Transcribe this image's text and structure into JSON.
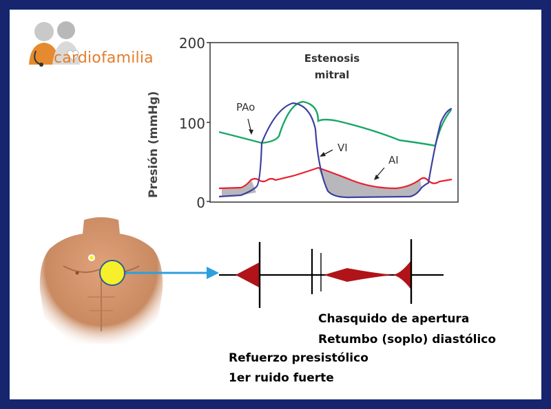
{
  "logo": {
    "text": "cardiofamilia"
  },
  "chart": {
    "title_line1": "Estenosis",
    "title_line2": "mitral",
    "ylabel": "Presión (mmHg)",
    "yticks": [
      "0",
      "100",
      "200"
    ]
  },
  "chart_data": {
    "type": "line",
    "ylabel": "Presión (mmHg)",
    "ylim": [
      0,
      200
    ],
    "series": [
      {
        "name": "PAo",
        "color": "#1aa764"
      },
      {
        "name": "VI",
        "color": "#3d3fa0"
      },
      {
        "name": "AI",
        "color": "#e8202e"
      }
    ]
  },
  "pcg": {
    "line1": "Chasquido de apertura",
    "line2": "Retumbo (soplo) diastólico",
    "line3": "Refuerzo presistólico",
    "line4": "1er ruido fuerte"
  },
  "colors": {
    "frame": "#16256e",
    "aortic": "#1aa764",
    "ventricle": "#3d3fa0",
    "atrium": "#e8202e",
    "murmur": "#b01318",
    "arrow": "#2d9fdb",
    "stethoscope": "#f7ef2a",
    "logo_text": "#e37d2b"
  },
  "icons": [
    "doctor-logo-icon",
    "stethoscope-point-icon",
    "torso-image"
  ]
}
